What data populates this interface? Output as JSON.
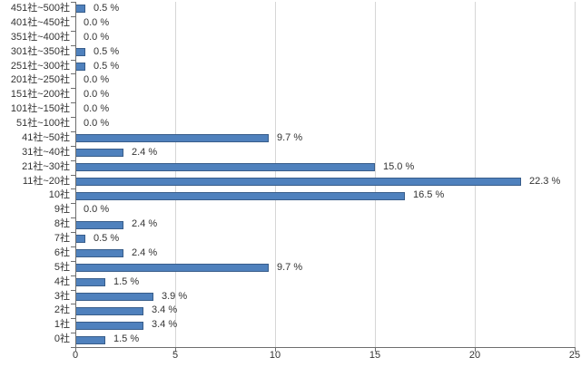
{
  "chart_data": {
    "type": "bar",
    "orientation": "horizontal",
    "title": "",
    "xlabel": "",
    "ylabel": "",
    "categories": [
      "451社~500社",
      "401社~450社",
      "351社~400社",
      "301社~350社",
      "251社~300社",
      "201社~250社",
      "151社~200社",
      "101社~150社",
      "51社~100社",
      "41社~50社",
      "31社~40社",
      "21社~30社",
      "11社~20社",
      "10社",
      "9社",
      "8社",
      "7社",
      "6社",
      "5社",
      "4社",
      "3社",
      "2社",
      "1社",
      "0社"
    ],
    "values": [
      0.5,
      0.0,
      0.0,
      0.5,
      0.5,
      0.0,
      0.0,
      0.0,
      0.0,
      9.7,
      2.4,
      15.0,
      22.3,
      16.5,
      0.0,
      2.4,
      0.5,
      2.4,
      9.7,
      1.5,
      3.9,
      3.4,
      3.4,
      1.5
    ],
    "value_labels": [
      "0.5 %",
      "0.0 %",
      "0.0 %",
      "0.5 %",
      "0.5 %",
      "0.0 %",
      "0.0 %",
      "0.0 %",
      "0.0 %",
      "9.7 %",
      "2.4 %",
      "15.0 %",
      "22.3 %",
      "16.5 %",
      "0.0 %",
      "2.4 %",
      "0.5 %",
      "2.4 %",
      "9.7 %",
      "1.5 %",
      "3.9 %",
      "3.4 %",
      "3.4 %",
      "1.5 %"
    ],
    "xlim": [
      0,
      25
    ],
    "xticks": [
      0,
      5,
      10,
      15,
      20,
      25
    ],
    "xtick_labels": [
      "0",
      "5",
      "10",
      "15",
      "20",
      "25"
    ],
    "grid": "vertical-only",
    "legend": "none",
    "colors": {
      "bar_fill": "#4f81bd",
      "bar_border": "#385d8a",
      "gridline": "#d6d6d6",
      "axis_line": "#6e6e6e",
      "text": "#333333",
      "background": "#ffffff"
    }
  }
}
